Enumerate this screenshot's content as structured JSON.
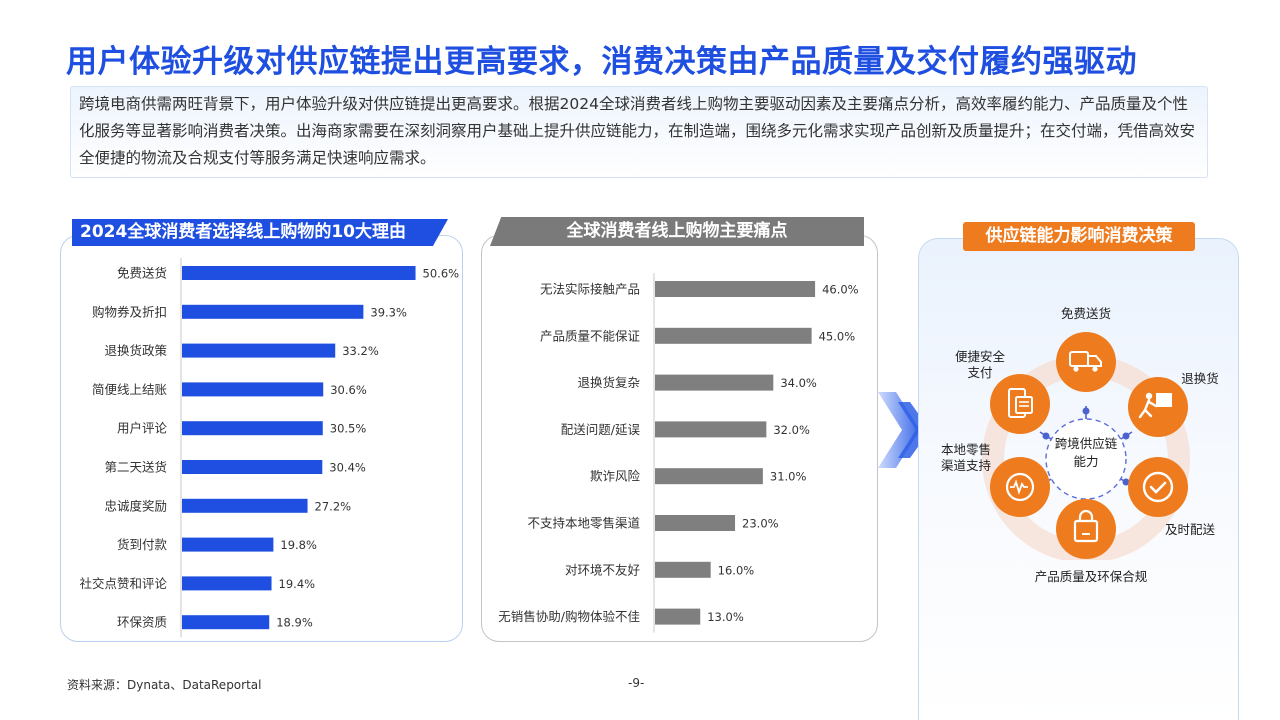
{
  "page": {
    "title": "用户体验升级对供应链提出更高要求，消费决策由产品质量及交付履约强驱动",
    "summary": "跨境电商供需两旺背景下，用户体验升级对供应链提出更高要求。根据2024全球消费者线上购物主要驱动因素及主要痛点分析，高效率履约能力、产品质量及个性化服务等显著影响消费者决策。出海商家需要在深刻洞察用户基础上提升供应链能力，在制造端，围绕多元化需求实现产品创新及质量提升；在交付端，凭借高效安全便捷的物流及合规支付等服务满足快速响应需求。",
    "source": "资料来源：Dynata、DataReportal",
    "page_number": "-9-"
  },
  "colors": {
    "brand_blue": "#1f4fe0",
    "gray_bar": "#7f7f7f",
    "orange": "#ef7b1f"
  },
  "panels": {
    "reasons_title": "2024全球消费者选择线上购物的10大理由",
    "pain_title": "全球消费者线上购物主要痛点",
    "supply_title": "供应链能力影响消费决策"
  },
  "chart_data": [
    {
      "type": "bar",
      "orientation": "horizontal",
      "title": "2024全球消费者选择线上购物的10大理由",
      "categories": [
        "免费送货",
        "购物券及折扣",
        "退换货政策",
        "简便线上结账",
        "用户评论",
        "第二天送货",
        "忠诚度奖励",
        "货到付款",
        "社交点赞和评论",
        "环保资质"
      ],
      "values": [
        50.6,
        39.3,
        33.2,
        30.6,
        30.5,
        30.4,
        27.2,
        19.8,
        19.4,
        18.9
      ],
      "value_labels": [
        "50.6%",
        "39.3%",
        "33.2%",
        "30.6%",
        "30.5%",
        "30.4%",
        "27.2%",
        "19.8%",
        "19.4%",
        "18.9%"
      ],
      "unit": "%",
      "xlim": [
        0,
        52
      ],
      "color": "#1f4fe0",
      "grid": false
    },
    {
      "type": "bar",
      "orientation": "horizontal",
      "title": "全球消费者线上购物主要痛点",
      "categories": [
        "无法实际接触产品",
        "产品质量不能保证",
        "退换货复杂",
        "配送问题/延误",
        "欺诈风险",
        "不支持本地零售渠道",
        "对环境不友好",
        "无销售协助/购物体验不佳"
      ],
      "values": [
        46.0,
        45.0,
        34.0,
        32.0,
        31.0,
        23.0,
        16.0,
        13.0
      ],
      "value_labels": [
        "46.0%",
        "45.0%",
        "34.0%",
        "32.0%",
        "31.0%",
        "23.0%",
        "16.0%",
        "13.0%"
      ],
      "unit": "%",
      "xlim": [
        0,
        50
      ],
      "color": "#7f7f7f",
      "grid": false
    }
  ],
  "hub": {
    "center": "跨境供应链能力",
    "nodes": [
      {
        "label": "免费送货",
        "icon": "truck-icon"
      },
      {
        "label": "退换货",
        "icon": "return-box-icon"
      },
      {
        "label": "及时配送",
        "icon": "check-circle-icon"
      },
      {
        "label": "产品质量及环保合规",
        "icon": "shopping-bag-icon"
      },
      {
        "label": "本地零售渠道支持",
        "icon": "pulse-icon"
      },
      {
        "label": "便捷安全支付",
        "icon": "mobile-payment-icon"
      }
    ]
  }
}
